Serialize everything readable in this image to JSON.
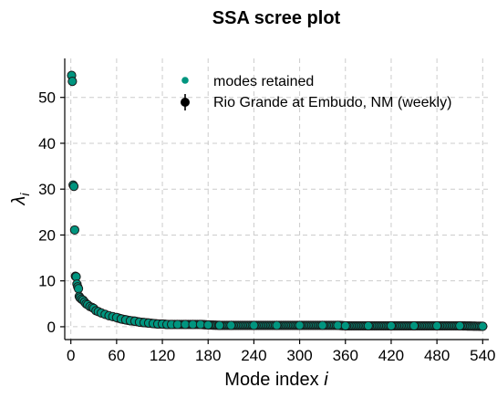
{
  "chart_data": {
    "type": "scatter",
    "title": "SSA scree plot",
    "xlabel": "Mode index",
    "xlabel_var": "i",
    "ylabel": "λ",
    "ylabel_sub": "i",
    "xlim": [
      -8,
      548
    ],
    "ylim": [
      -2.8,
      58.5
    ],
    "xticks": [
      0,
      60,
      120,
      180,
      240,
      300,
      360,
      420,
      480,
      540
    ],
    "yticks": [
      0,
      10,
      20,
      30,
      40,
      50
    ],
    "grid": true,
    "legend_position": "top-right",
    "legend": [
      "modes retained",
      "Rio Grande at Embudo, NM (weekly)"
    ],
    "colors": {
      "point_fill": "#00957f",
      "point_edge": "#1a1a1a",
      "legend_marker": "#00957f",
      "errorbar": "#000000"
    },
    "series": [
      {
        "name": "Rio Grande at Embudo, NM (weekly)",
        "x": [
          1,
          2,
          3,
          4,
          5,
          6,
          7,
          8,
          9,
          10,
          11,
          12,
          14,
          16,
          18,
          20,
          22,
          25,
          28,
          30,
          33,
          36,
          40,
          45,
          50,
          55,
          60,
          66,
          72,
          78,
          84,
          90,
          96,
          102,
          108,
          114,
          120,
          126,
          132,
          140,
          150,
          160,
          170,
          180,
          195,
          210,
          240,
          270,
          300,
          330,
          350,
          360,
          390,
          420,
          450,
          480,
          510,
          540
        ],
        "y": [
          54.8,
          53.5,
          30.9,
          30.6,
          21.1,
          11.0,
          10.9,
          9.3,
          8.7,
          8.3,
          6.6,
          6.3,
          6.0,
          5.8,
          5.4,
          5.0,
          4.8,
          4.4,
          4.2,
          4.0,
          3.5,
          3.3,
          3.0,
          2.7,
          2.4,
          2.2,
          2.0,
          1.7,
          1.5,
          1.3,
          1.2,
          1.0,
          0.9,
          0.8,
          0.7,
          0.6,
          0.6,
          0.5,
          0.5,
          0.5,
          0.5,
          0.5,
          0.5,
          0.4,
          0.3,
          0.3,
          0.3,
          0.3,
          0.3,
          0.3,
          0.3,
          0.2,
          0.2,
          0.2,
          0.2,
          0.2,
          0.2,
          0.1
        ]
      }
    ]
  }
}
